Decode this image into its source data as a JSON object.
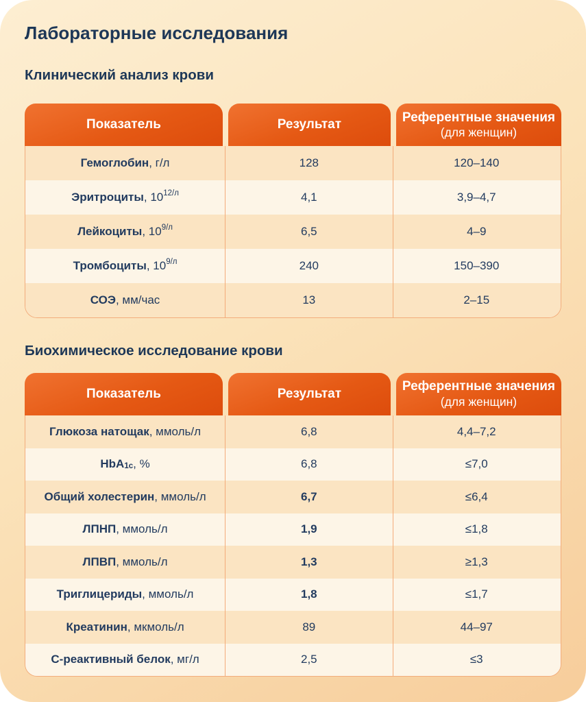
{
  "page": {
    "title": "Лабораторные исследования"
  },
  "colors": {
    "header_orange_top": "#f07230",
    "header_orange_bottom": "#dd4c0c",
    "row_peach": "#fbe4c2",
    "row_cream": "#fdf5e7",
    "text_navy": "#213a5e",
    "page_bg_top": "#fdeed2",
    "page_bg_bottom": "#f7cd9b"
  },
  "table_columns": {
    "parameter": "Показатель",
    "result": "Результат",
    "reference": "Референтные значения",
    "reference_note": "(для женщин)"
  },
  "sections": [
    {
      "subtitle": "Клинический анализ крови",
      "rows": [
        {
          "label": [
            {
              "t": "Гемоглобин",
              "b": true
            },
            {
              "t": ", г/л"
            }
          ],
          "result": "128",
          "result_bold": false,
          "ref": "120–140"
        },
        {
          "label": [
            {
              "t": "Эритроциты",
              "b": true
            },
            {
              "t": ", 10"
            },
            {
              "t": "12/л",
              "sup": true
            }
          ],
          "result": "4,1",
          "result_bold": false,
          "ref": "3,9–4,7"
        },
        {
          "label": [
            {
              "t": "Лейкоциты",
              "b": true
            },
            {
              "t": ", 10"
            },
            {
              "t": "9/л",
              "sup": true
            }
          ],
          "result": "6,5",
          "result_bold": false,
          "ref": "4–9"
        },
        {
          "label": [
            {
              "t": "Тромбоциты",
              "b": true
            },
            {
              "t": ", 10"
            },
            {
              "t": "9/л",
              "sup": true
            }
          ],
          "result": "240",
          "result_bold": false,
          "ref": "150–390"
        },
        {
          "label": [
            {
              "t": "СОЭ",
              "b": true
            },
            {
              "t": ", мм/час"
            }
          ],
          "result": "13",
          "result_bold": false,
          "ref": "2–15"
        }
      ]
    },
    {
      "subtitle": "Биохимическое исследование крови",
      "rows": [
        {
          "label": [
            {
              "t": "Глюкоза натощак",
              "b": true
            },
            {
              "t": ", ммоль/л"
            }
          ],
          "result": "6,8",
          "result_bold": false,
          "ref": "4,4–7,2"
        },
        {
          "label": [
            {
              "t": "HbA",
              "b": true
            },
            {
              "t": "1c",
              "b": true,
              "sub": true
            },
            {
              "t": ", %"
            }
          ],
          "result": "6,8",
          "result_bold": false,
          "ref": "≤7,0"
        },
        {
          "label": [
            {
              "t": "Общий холестерин",
              "b": true
            },
            {
              "t": ", ммоль/л"
            }
          ],
          "result": "6,7",
          "result_bold": true,
          "ref": "≤6,4"
        },
        {
          "label": [
            {
              "t": "ЛПНП",
              "b": true
            },
            {
              "t": ", ммоль/л"
            }
          ],
          "result": "1,9",
          "result_bold": true,
          "ref": "≤1,8"
        },
        {
          "label": [
            {
              "t": "ЛПВП",
              "b": true
            },
            {
              "t": ", ммоль/л"
            }
          ],
          "result": "1,3",
          "result_bold": true,
          "ref": "≥1,3"
        },
        {
          "label": [
            {
              "t": "Триглицериды",
              "b": true
            },
            {
              "t": ", ммоль/л"
            }
          ],
          "result": "1,8",
          "result_bold": true,
          "ref": "≤1,7"
        },
        {
          "label": [
            {
              "t": "Креатинин",
              "b": true
            },
            {
              "t": ", мкмоль/л"
            }
          ],
          "result": "89",
          "result_bold": false,
          "ref": "44–97"
        },
        {
          "label": [
            {
              "t": "С-реактивный белок",
              "b": true
            },
            {
              "t": ", мг/л"
            }
          ],
          "result": "2,5",
          "result_bold": false,
          "ref": "≤3"
        }
      ]
    }
  ]
}
